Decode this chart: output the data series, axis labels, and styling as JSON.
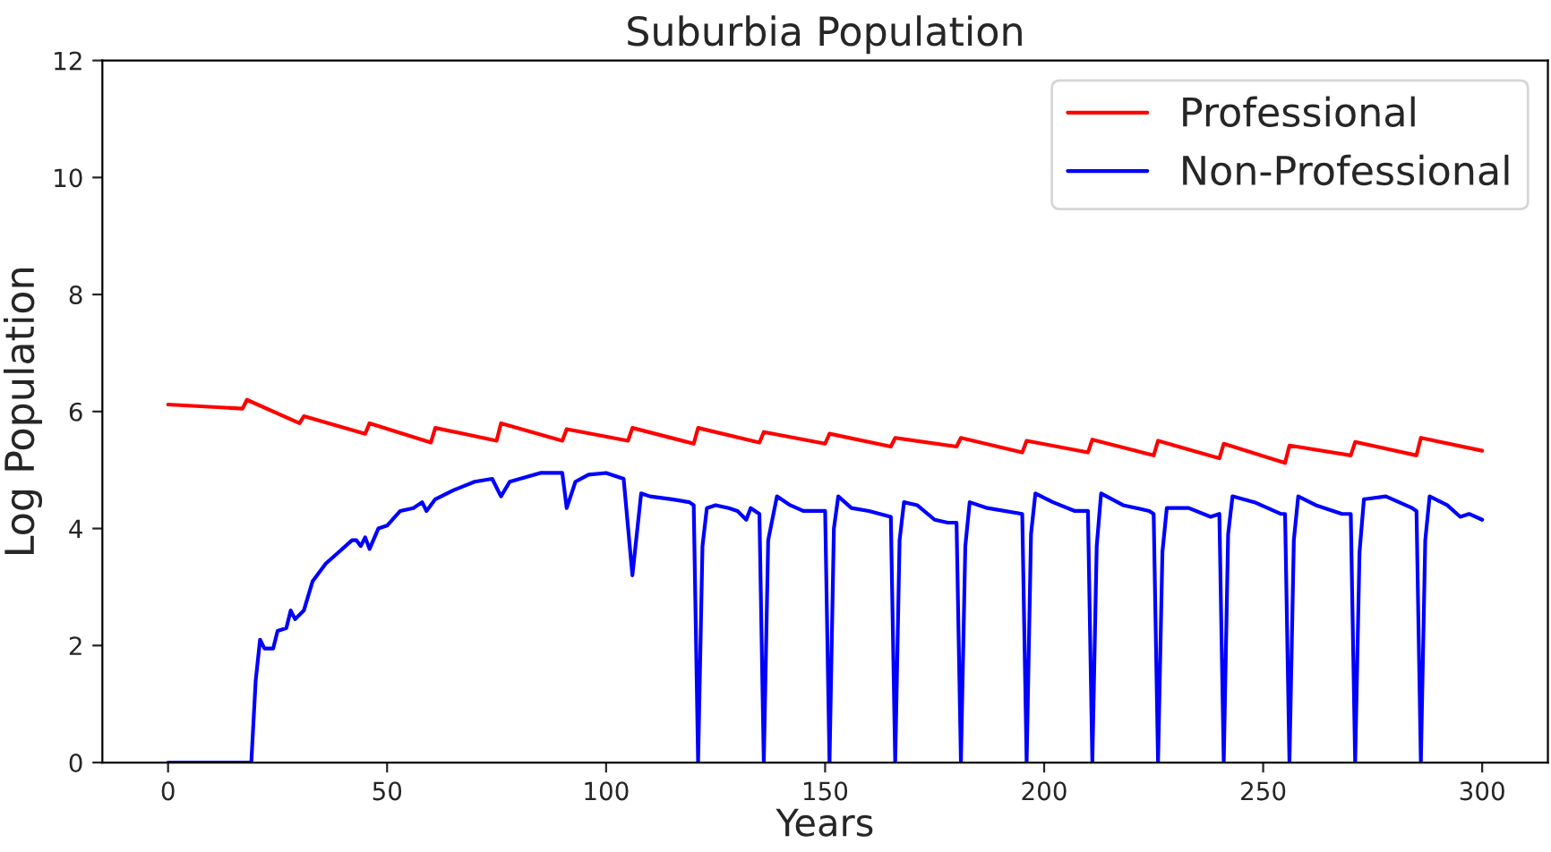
{
  "chart_data": {
    "type": "line",
    "title": "Suburbia Population",
    "xlabel": "Years",
    "ylabel": "Log Population",
    "xlim": [
      -15,
      315
    ],
    "xticks": [
      0,
      50,
      100,
      150,
      200,
      250,
      300
    ],
    "ylim": [
      0,
      12
    ],
    "yticks": [
      0,
      2,
      4,
      6,
      8,
      10,
      12
    ],
    "grid": false,
    "legend": "top right",
    "series": [
      {
        "name": "Professional",
        "color": "#ff0000",
        "x": [
          0,
          17,
          18,
          30,
          31,
          45,
          46,
          60,
          61,
          75,
          76,
          90,
          91,
          105,
          106,
          120,
          121,
          135,
          136,
          150,
          151,
          165,
          166,
          180,
          181,
          195,
          196,
          210,
          211,
          225,
          226,
          240,
          241,
          255,
          256,
          270,
          271,
          285,
          286,
          300
        ],
        "values": [
          6.12,
          6.05,
          6.2,
          5.8,
          5.92,
          5.62,
          5.8,
          5.47,
          5.72,
          5.5,
          5.8,
          5.5,
          5.7,
          5.5,
          5.72,
          5.45,
          5.72,
          5.47,
          5.65,
          5.45,
          5.62,
          5.4,
          5.55,
          5.4,
          5.55,
          5.3,
          5.5,
          5.3,
          5.52,
          5.25,
          5.5,
          5.2,
          5.45,
          5.12,
          5.42,
          5.25,
          5.48,
          5.25,
          5.55,
          5.33
        ]
      },
      {
        "name": "Non-Professional",
        "color": "#0000ff",
        "x": [
          0,
          19,
          20,
          21,
          22,
          24,
          25,
          27,
          28,
          29,
          31,
          33,
          36,
          39,
          42,
          43,
          44,
          45,
          46,
          48,
          50,
          53,
          56,
          58,
          59,
          61,
          65,
          70,
          74,
          76,
          78,
          85,
          90,
          91,
          93,
          96,
          100,
          104,
          106,
          108,
          110,
          115,
          119,
          120,
          121,
          122,
          123,
          125,
          128,
          130,
          132,
          133,
          135,
          136,
          137,
          139,
          142,
          145,
          150,
          151,
          152,
          153,
          156,
          160,
          165,
          166,
          167,
          168,
          171,
          175,
          178,
          180,
          181,
          182,
          183,
          187,
          195,
          196,
          197,
          198,
          202,
          207,
          210,
          211,
          212,
          213,
          218,
          224,
          225,
          226,
          227,
          228,
          233,
          238,
          240,
          241,
          242,
          243,
          248,
          254,
          255,
          256,
          257,
          258,
          262,
          268,
          270,
          271,
          272,
          273,
          278,
          284,
          285,
          286,
          287,
          288,
          292,
          295,
          297,
          300
        ],
        "values": [
          0,
          0,
          1.4,
          2.1,
          1.95,
          1.95,
          2.25,
          2.3,
          2.6,
          2.45,
          2.6,
          3.1,
          3.4,
          3.6,
          3.8,
          3.8,
          3.7,
          3.85,
          3.65,
          4.0,
          4.05,
          4.3,
          4.35,
          4.45,
          4.3,
          4.5,
          4.65,
          4.8,
          4.85,
          4.55,
          4.8,
          4.95,
          4.95,
          4.35,
          4.8,
          4.92,
          4.95,
          4.85,
          3.2,
          4.6,
          4.55,
          4.5,
          4.45,
          4.4,
          0,
          3.7,
          4.35,
          4.4,
          4.35,
          4.3,
          4.15,
          4.35,
          4.25,
          0,
          3.8,
          4.55,
          4.4,
          4.3,
          4.3,
          0,
          4.0,
          4.55,
          4.35,
          4.3,
          4.2,
          0,
          3.8,
          4.45,
          4.4,
          4.15,
          4.1,
          4.1,
          0,
          3.7,
          4.45,
          4.35,
          4.25,
          0,
          3.9,
          4.6,
          4.45,
          4.3,
          4.3,
          0,
          3.7,
          4.6,
          4.4,
          4.3,
          4.25,
          0,
          3.6,
          4.35,
          4.35,
          4.2,
          4.25,
          0,
          3.9,
          4.55,
          4.45,
          4.25,
          4.25,
          0,
          3.8,
          4.55,
          4.4,
          4.25,
          4.25,
          0,
          3.6,
          4.5,
          4.55,
          4.35,
          4.3,
          0,
          3.8,
          4.55,
          4.4,
          4.2,
          4.25,
          4.15
        ]
      }
    ]
  }
}
